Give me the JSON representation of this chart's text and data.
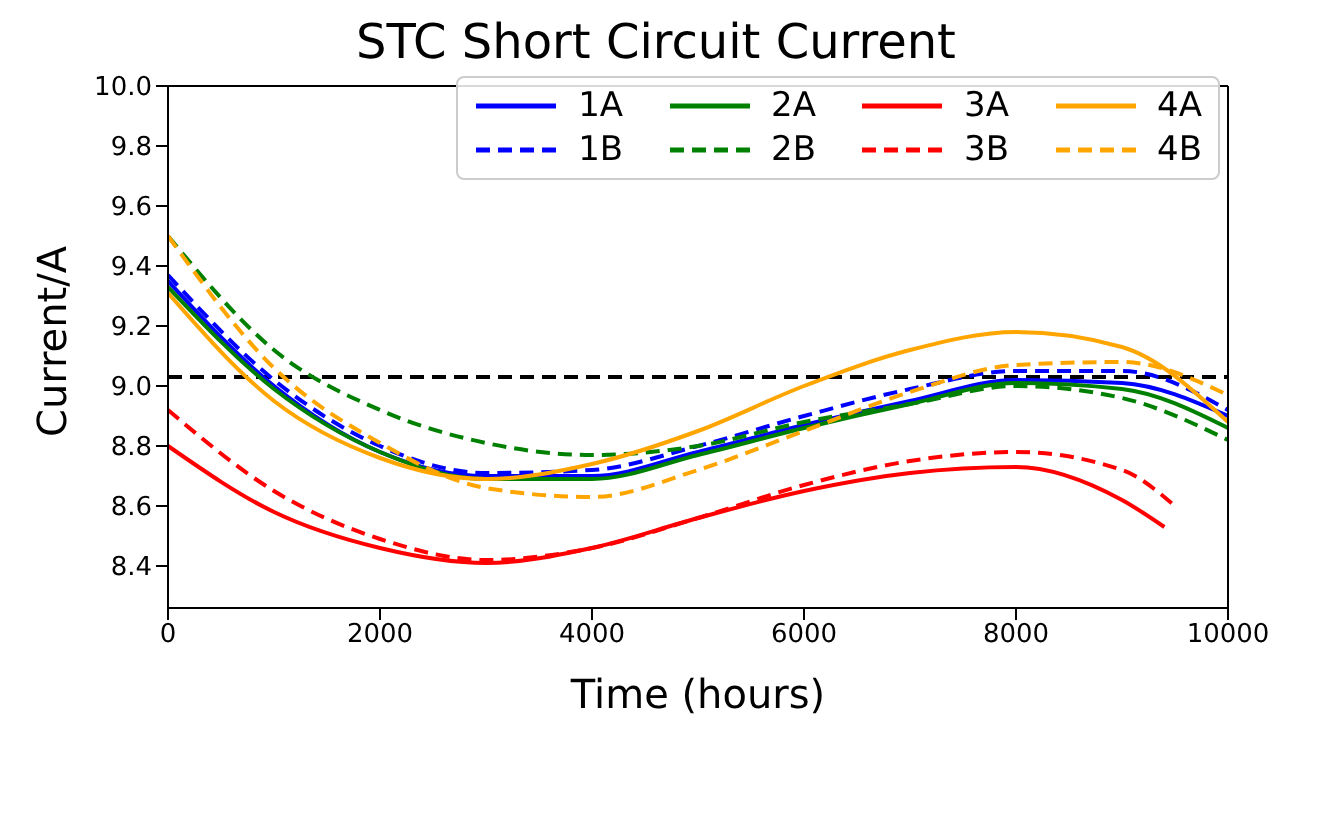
{
  "chart_data": {
    "type": "line",
    "title": "STC Short Circuit Current",
    "xlabel": "Time (hours)",
    "ylabel": "Current/A",
    "x": [
      0,
      1000,
      2000,
      3000,
      4000,
      5000,
      6000,
      7000,
      8000,
      9000,
      10000
    ],
    "xlim": [
      0,
      10000
    ],
    "xticks": [
      0,
      2000,
      4000,
      6000,
      8000,
      10000
    ],
    "ylim": [
      8.26,
      10.0
    ],
    "yticks": [
      {
        "value": 8.4,
        "label": "8.4"
      },
      {
        "value": 8.6,
        "label": "8.6"
      },
      {
        "value": 8.8,
        "label": "8.8"
      },
      {
        "value": 9.0,
        "label": "9.0"
      },
      {
        "value": 9.2,
        "label": "9.2"
      },
      {
        "value": 9.4,
        "label": "9.4"
      },
      {
        "value": 9.6,
        "label": "9.6"
      },
      {
        "value": 9.8,
        "label": "9.8"
      },
      {
        "value": 10.0,
        "label": "10.0"
      }
    ],
    "grid": false,
    "legend": "top right",
    "marker": "none",
    "ref_lines": [
      {
        "axis": "y",
        "value": 9.03,
        "color": "#000000",
        "line_style": "dashed"
      }
    ],
    "series": [
      {
        "name": "1A",
        "color": "#0000ff",
        "line_style": "solid",
        "values": [
          9.35,
          9.0,
          8.78,
          8.7,
          8.7,
          8.78,
          8.87,
          8.95,
          9.02,
          9.01,
          8.9
        ]
      },
      {
        "name": "1B",
        "color": "#0000ff",
        "line_style": "dashed",
        "values": [
          9.37,
          9.02,
          8.8,
          8.71,
          8.72,
          8.8,
          8.9,
          8.99,
          9.05,
          9.05,
          8.92
        ]
      },
      {
        "name": "2A",
        "color": "#008000",
        "line_style": "solid",
        "values": [
          9.33,
          8.99,
          8.78,
          8.69,
          8.69,
          8.77,
          8.86,
          8.94,
          9.01,
          8.99,
          8.86
        ]
      },
      {
        "name": "2B",
        "color": "#008000",
        "line_style": "dashed",
        "values": [
          9.5,
          9.12,
          8.92,
          8.81,
          8.77,
          8.8,
          8.88,
          8.94,
          9.0,
          8.96,
          8.82
        ]
      },
      {
        "name": "3A",
        "color": "#ff0000",
        "line_style": "solid",
        "x": [
          0,
          1000,
          2000,
          3000,
          4000,
          5000,
          6000,
          7000,
          8000,
          9000,
          9400
        ],
        "values": [
          8.8,
          8.58,
          8.46,
          8.41,
          8.46,
          8.56,
          8.65,
          8.71,
          8.73,
          8.62,
          8.53
        ]
      },
      {
        "name": "3B",
        "color": "#ff0000",
        "line_style": "dashed",
        "x": [
          0,
          1000,
          2000,
          3000,
          4000,
          5000,
          6000,
          7000,
          8000,
          9000,
          9500
        ],
        "values": [
          8.92,
          8.65,
          8.49,
          8.42,
          8.46,
          8.56,
          8.67,
          8.75,
          8.78,
          8.72,
          8.6
        ]
      },
      {
        "name": "4A",
        "color": "#ffa500",
        "line_style": "solid",
        "values": [
          9.31,
          8.95,
          8.76,
          8.69,
          8.74,
          8.85,
          9.0,
          9.12,
          9.18,
          9.13,
          8.88
        ]
      },
      {
        "name": "4B",
        "color": "#ffa500",
        "line_style": "dashed",
        "values": [
          9.5,
          9.06,
          8.81,
          8.66,
          8.63,
          8.72,
          8.85,
          8.98,
          9.07,
          9.08,
          8.97
        ]
      }
    ]
  }
}
